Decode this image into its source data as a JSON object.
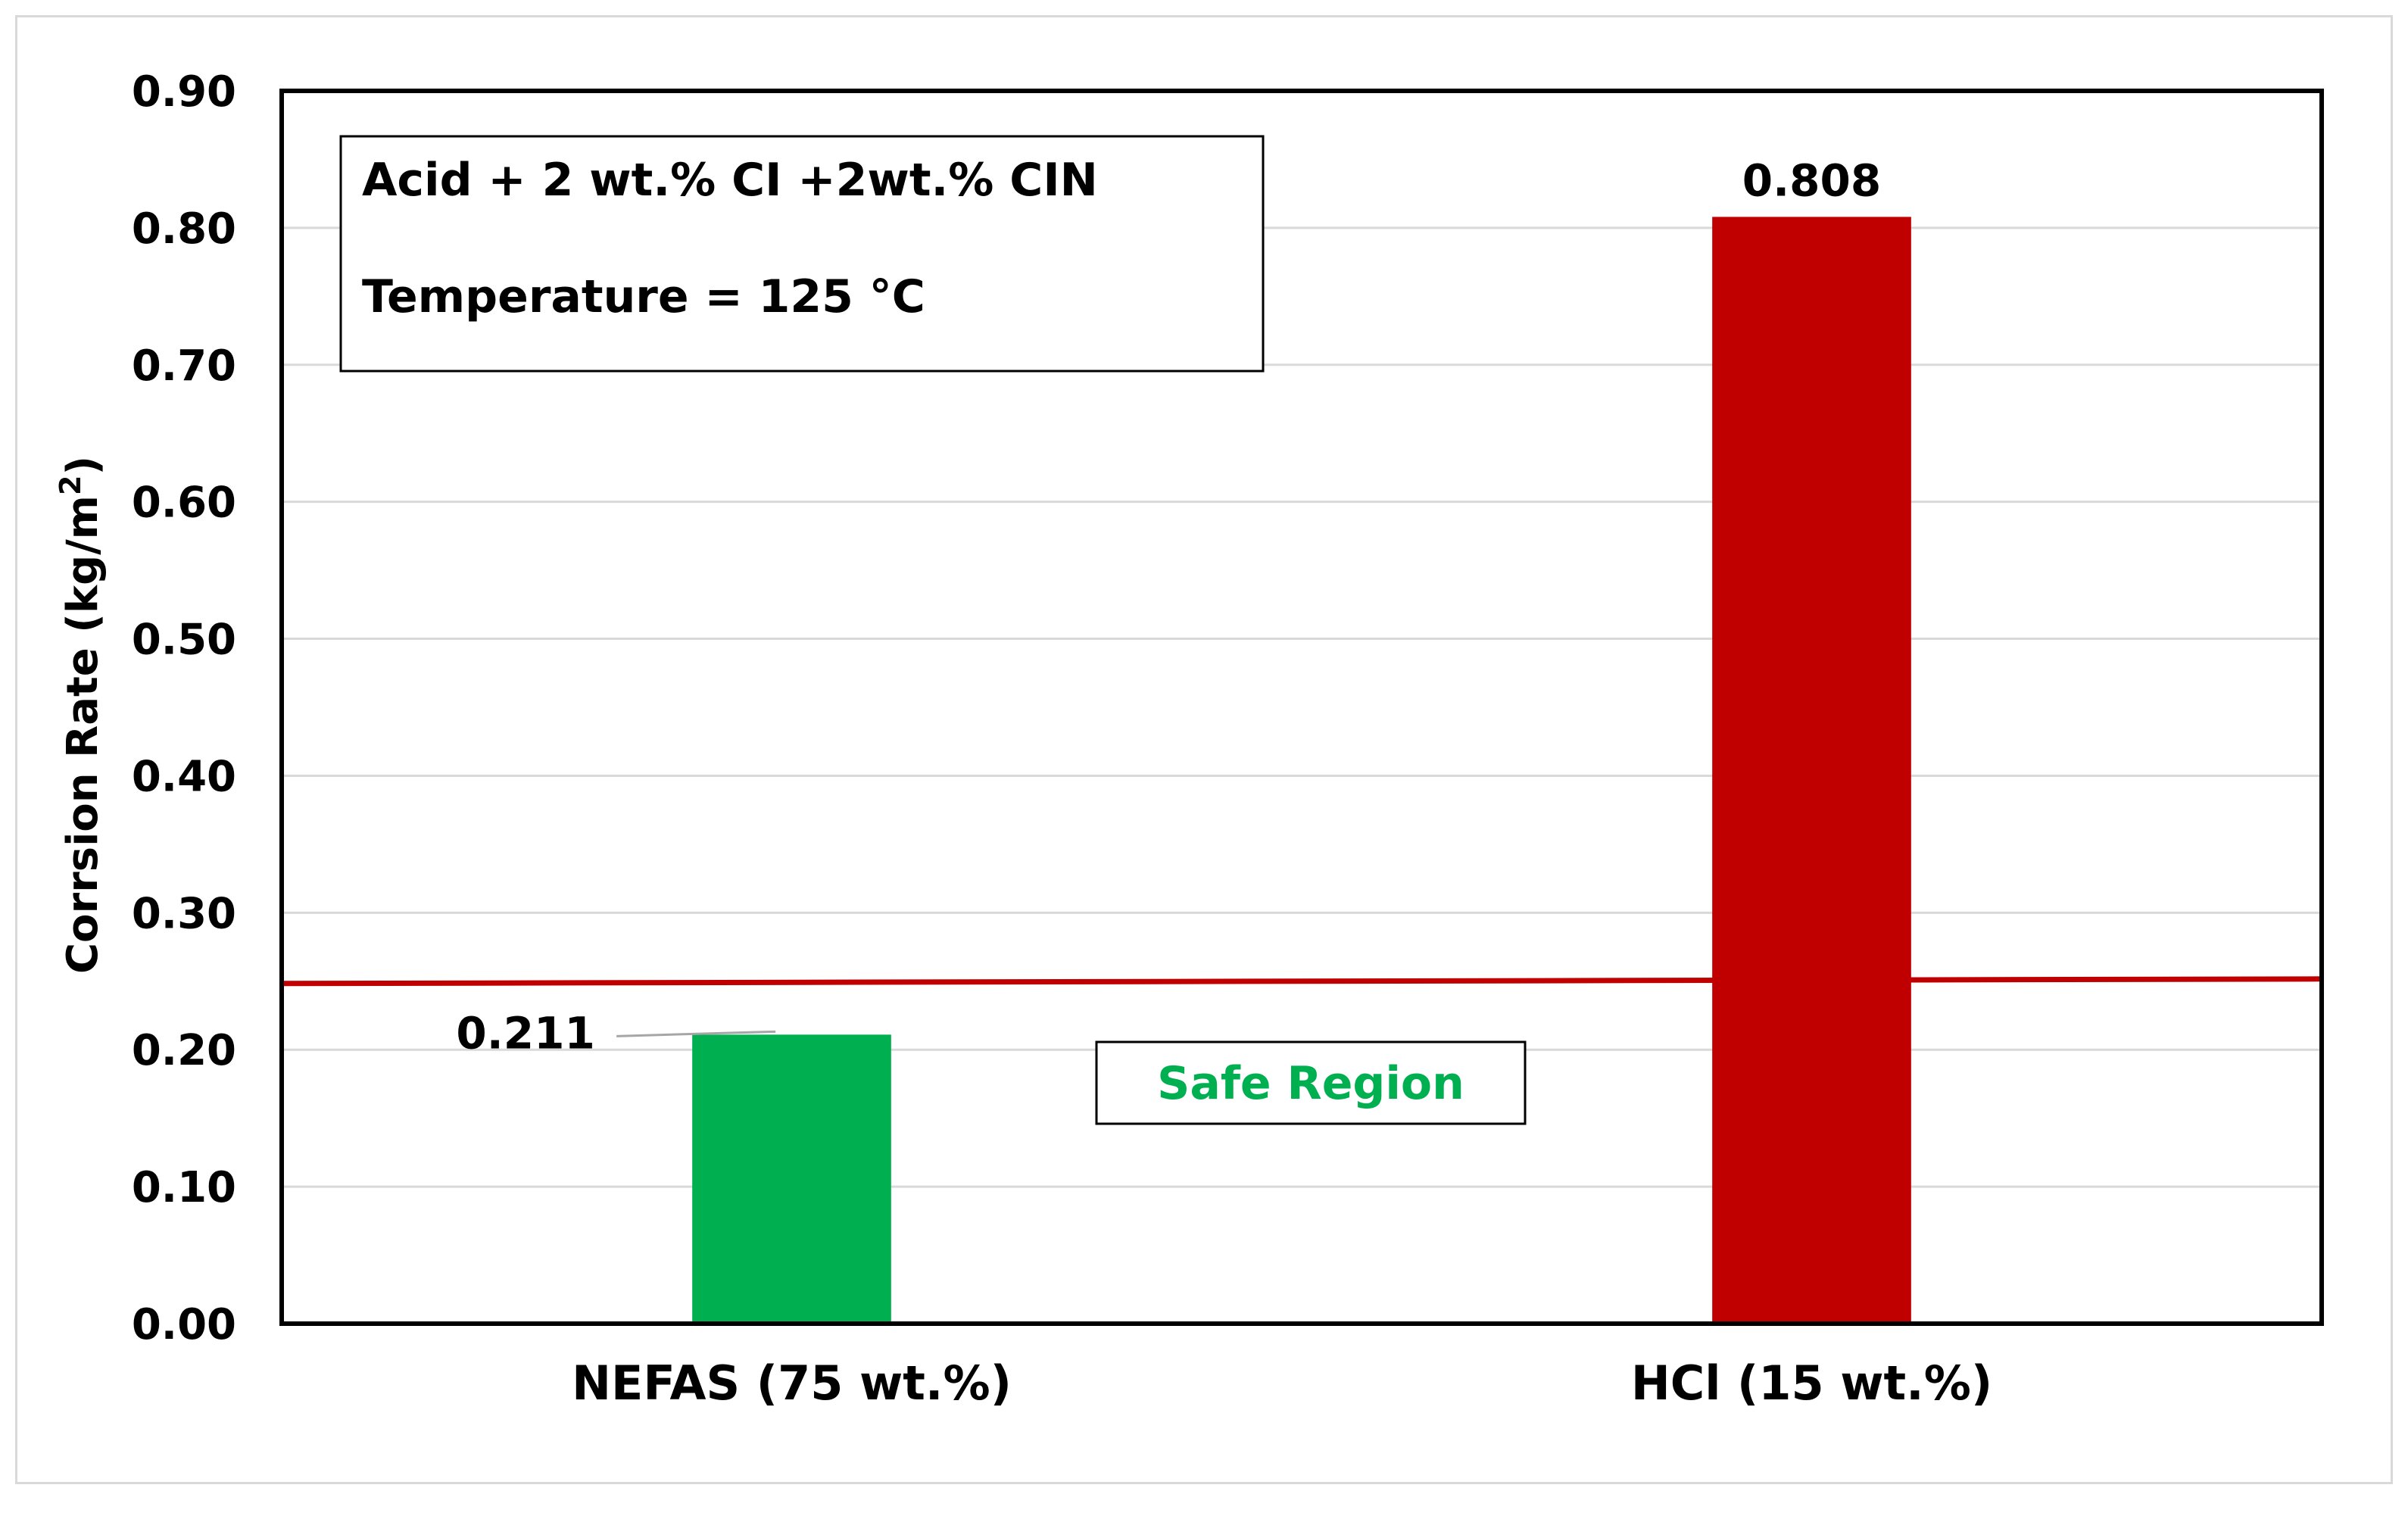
{
  "chart_data": {
    "type": "bar",
    "categories": [
      "NEFAS (75 wt.%)",
      "HCl (15 wt.%)"
    ],
    "values": [
      0.211,
      0.808
    ],
    "data_labels": [
      "0.211",
      "0.808"
    ],
    "bar_colors": [
      "#00b050",
      "#c00000"
    ],
    "title": "",
    "xlabel": "",
    "ylabel_main": "Corrsion Rate (kg/m",
    "ylabel_sup": "2",
    "ylabel_close": ")",
    "ylim": [
      0,
      0.9
    ],
    "y_ticks": [
      0,
      0.1,
      0.2,
      0.3,
      0.4,
      0.5,
      0.6,
      0.7,
      0.8,
      0.9
    ],
    "y_tick_labels": [
      "0.00",
      "0.10",
      "0.20",
      "0.30",
      "0.40",
      "0.50",
      "0.60",
      "0.70",
      "0.80",
      "0.90"
    ],
    "grid": true,
    "legend": "none",
    "threshold": {
      "value": 0.25,
      "color": "#c00000",
      "label": "Safe Region",
      "label_color": "#00b050"
    },
    "annotation": {
      "line1": "Acid + 2 wt.% CI +2wt.% CIN",
      "line2": "Temperature = 125 °C"
    }
  }
}
